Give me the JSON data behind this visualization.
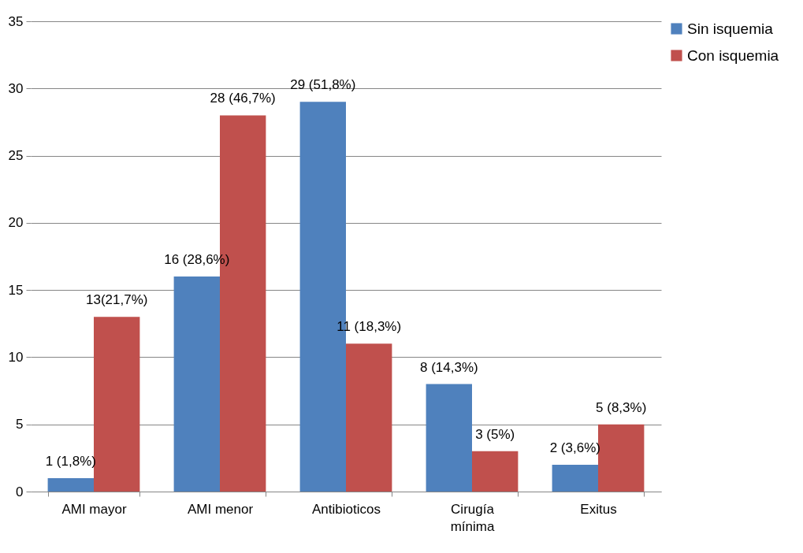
{
  "chart_data": {
    "type": "bar",
    "categories": [
      "AMI mayor",
      "AMI menor",
      "Antibioticos",
      "Cirugía mínima",
      "Exitus"
    ],
    "series": [
      {
        "name": "Sin isquemia",
        "color": "#4f81bd",
        "values": [
          1,
          16,
          29,
          8,
          2
        ],
        "value_labels": [
          "1 (1,8%)",
          "16 (28,6%)",
          "29 (51,8%)",
          "8 (14,3%)",
          "2 (3,6%)"
        ]
      },
      {
        "name": "Con isquemia",
        "color": "#c0504d",
        "values": [
          13,
          28,
          11,
          3,
          5
        ],
        "value_labels": [
          "13(21,7%)",
          "28 (46,7%)",
          "11 (18,3%)",
          "3 (5%)",
          "5 (8,3%)"
        ]
      }
    ],
    "ylim": [
      0,
      35
    ],
    "yticks": [
      0,
      5,
      10,
      15,
      20,
      25,
      30,
      35
    ],
    "grid": "y",
    "legend": "right"
  }
}
